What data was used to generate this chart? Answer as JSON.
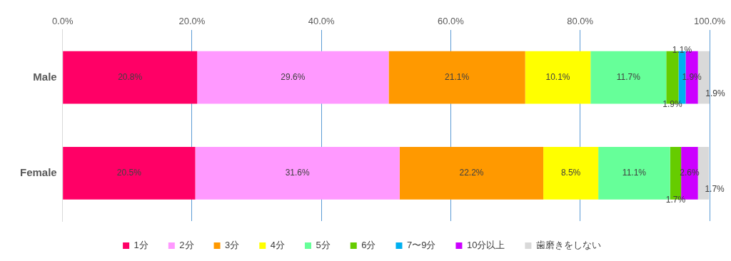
{
  "chart_data": {
    "type": "bar",
    "orientation": "horizontal",
    "stacked": true,
    "categories": [
      "Male",
      "Female"
    ],
    "xlim": [
      0,
      100
    ],
    "xticks": [
      {
        "value": 0,
        "label": "0.0%"
      },
      {
        "value": 20,
        "label": "20.0%"
      },
      {
        "value": 40,
        "label": "40.0%"
      },
      {
        "value": 60,
        "label": "60.0%"
      },
      {
        "value": 80,
        "label": "80.0%"
      },
      {
        "value": 100,
        "label": "100.0%"
      }
    ],
    "grid": "x",
    "legend": "bottom",
    "series": [
      {
        "name": "1分",
        "color": "#ff0066",
        "values": [
          20.8,
          20.5
        ],
        "value_labels": [
          "20.8%",
          "20.5%"
        ]
      },
      {
        "name": "2分",
        "color": "#ff99ff",
        "values": [
          29.6,
          31.6
        ],
        "value_labels": [
          "29.6%",
          "31.6%"
        ]
      },
      {
        "name": "3分",
        "color": "#ff9900",
        "values": [
          21.1,
          22.2
        ],
        "value_labels": [
          "21.1%",
          "22.2%"
        ]
      },
      {
        "name": "4分",
        "color": "#ffff00",
        "values": [
          10.1,
          8.5
        ],
        "value_labels": [
          "10.1%",
          "8.5%"
        ]
      },
      {
        "name": "5分",
        "color": "#66ff99",
        "values": [
          11.7,
          11.1
        ],
        "value_labels": [
          "11.7%",
          "11.1%"
        ]
      },
      {
        "name": "6分",
        "color": "#66cc00",
        "values": [
          1.9,
          1.7
        ],
        "value_labels": [
          "1.9%",
          "1.7%"
        ]
      },
      {
        "name": "7〜9分",
        "color": "#00b0f0",
        "values": [
          1.1,
          null
        ],
        "value_labels": [
          "1.1%",
          null
        ]
      },
      {
        "name": "10分以上",
        "color": "#cc00ff",
        "values": [
          1.9,
          2.6
        ],
        "value_labels": [
          "1.9%",
          "2.6%"
        ]
      },
      {
        "name": "歯磨きをしない",
        "color": "#d9d9d9",
        "values": [
          1.9,
          1.7
        ],
        "value_labels": [
          "1.9%",
          "1.7%"
        ]
      }
    ]
  }
}
